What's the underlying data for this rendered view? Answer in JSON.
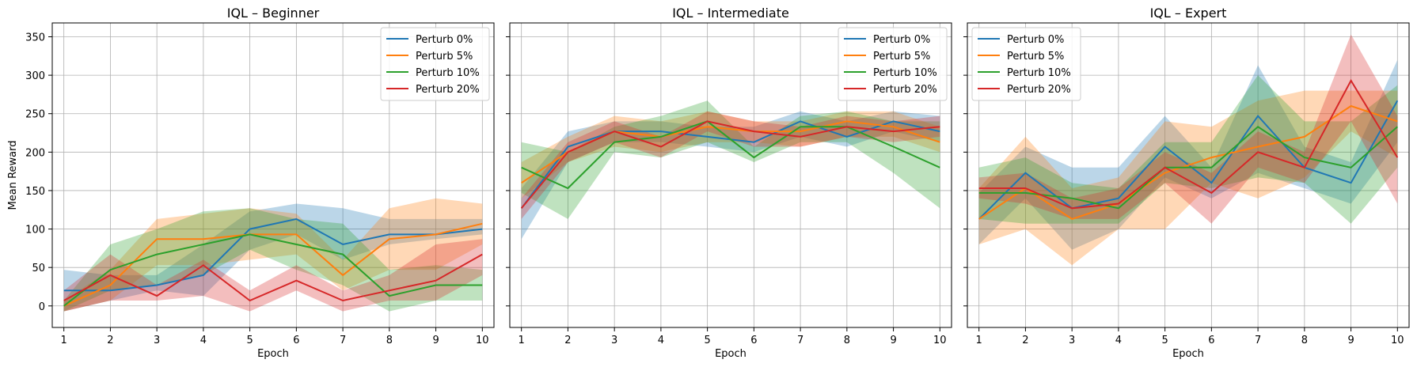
{
  "chart_data": [
    {
      "type": "line",
      "title": "IQL – Beginner",
      "xlabel": "Epoch",
      "ylabel": "Mean Reward",
      "x": [
        1,
        2,
        3,
        4,
        5,
        6,
        7,
        8,
        9,
        10
      ],
      "xlim": [
        0.75,
        10.25
      ],
      "ylim": [
        -28,
        368
      ],
      "yticks": [
        0,
        50,
        100,
        150,
        200,
        250,
        300,
        350
      ],
      "grid": true,
      "legend_position": "top-right",
      "series": [
        {
          "name": "Perturb 0%",
          "color": "#1f77b4",
          "values": [
            20,
            20,
            27,
            40,
            100,
            113,
            80,
            93,
            93,
            100
          ],
          "lower": [
            -7,
            7,
            20,
            13,
            73,
            93,
            60,
            80,
            87,
            93
          ],
          "upper": [
            47,
            40,
            40,
            80,
            123,
            133,
            127,
            113,
            113,
            113
          ]
        },
        {
          "name": "Perturb 5%",
          "color": "#ff7f0e",
          "values": [
            0,
            27,
            87,
            87,
            93,
            93,
            40,
            87,
            93,
            107
          ],
          "lower": [
            -7,
            7,
            53,
            53,
            60,
            67,
            20,
            47,
            47,
            80
          ],
          "upper": [
            7,
            47,
            113,
            120,
            127,
            120,
            60,
            127,
            140,
            133
          ]
        },
        {
          "name": "Perturb 10%",
          "color": "#2ca02c",
          "values": [
            0,
            47,
            67,
            80,
            93,
            80,
            67,
            13,
            27,
            27
          ],
          "lower": [
            -7,
            20,
            27,
            40,
            73,
            47,
            27,
            -7,
            7,
            7
          ],
          "upper": [
            7,
            80,
            100,
            123,
            127,
            113,
            107,
            47,
            53,
            47
          ]
        },
        {
          "name": "Perturb 20%",
          "color": "#d62728",
          "values": [
            7,
            40,
            13,
            53,
            7,
            33,
            7,
            20,
            33,
            67
          ],
          "lower": [
            -7,
            7,
            7,
            13,
            -7,
            20,
            -7,
            7,
            7,
            40
          ],
          "upper": [
            20,
            67,
            27,
            60,
            20,
            53,
            20,
            40,
            80,
            87
          ]
        }
      ]
    },
    {
      "type": "line",
      "title": "IQL – Intermediate",
      "xlabel": "Epoch",
      "ylabel": "",
      "x": [
        1,
        2,
        3,
        4,
        5,
        6,
        7,
        8,
        9,
        10
      ],
      "xlim": [
        0.75,
        10.25
      ],
      "ylim": [
        -28,
        368
      ],
      "yticks": [
        0,
        50,
        100,
        150,
        200,
        250,
        300,
        350
      ],
      "grid": true,
      "legend_position": "top-right",
      "series": [
        {
          "name": "Perturb 0%",
          "color": "#1f77b4",
          "values": [
            127,
            207,
            227,
            227,
            220,
            213,
            240,
            220,
            240,
            227
          ],
          "lower": [
            87,
            187,
            213,
            213,
            207,
            200,
            220,
            207,
            227,
            213
          ],
          "upper": [
            153,
            227,
            240,
            240,
            233,
            233,
            253,
            240,
            253,
            247
          ]
        },
        {
          "name": "Perturb 5%",
          "color": "#ff7f0e",
          "values": [
            160,
            200,
            227,
            220,
            233,
            227,
            227,
            240,
            233,
            213
          ],
          "lower": [
            140,
            187,
            207,
            200,
            213,
            213,
            207,
            220,
            220,
            200
          ],
          "upper": [
            187,
            220,
            247,
            240,
            253,
            240,
            240,
            253,
            253,
            233
          ]
        },
        {
          "name": "Perturb 10%",
          "color": "#2ca02c",
          "values": [
            180,
            153,
            213,
            220,
            240,
            193,
            233,
            233,
            207,
            180
          ],
          "lower": [
            147,
            113,
            200,
            193,
            213,
            187,
            213,
            213,
            173,
            127
          ],
          "upper": [
            213,
            200,
            233,
            247,
            267,
            207,
            247,
            253,
            240,
            240
          ]
        },
        {
          "name": "Perturb 20%",
          "color": "#d62728",
          "values": [
            127,
            200,
            227,
            207,
            240,
            227,
            220,
            233,
            227,
            233
          ],
          "lower": [
            113,
            187,
            213,
            193,
            227,
            207,
            207,
            220,
            213,
            220
          ],
          "upper": [
            140,
            213,
            240,
            220,
            253,
            240,
            233,
            247,
            240,
            247
          ]
        }
      ]
    },
    {
      "type": "line",
      "title": "IQL – Expert",
      "xlabel": "Epoch",
      "ylabel": "",
      "x": [
        1,
        2,
        3,
        4,
        5,
        6,
        7,
        8,
        9,
        10
      ],
      "xlim": [
        0.75,
        10.25
      ],
      "ylim": [
        -28,
        368
      ],
      "yticks": [
        0,
        50,
        100,
        150,
        200,
        250,
        300,
        350
      ],
      "grid": true,
      "legend_position": "top-left",
      "series": [
        {
          "name": "Perturb 0%",
          "color": "#1f77b4",
          "values": [
            113,
            173,
            127,
            140,
            207,
            160,
            247,
            180,
            160,
            267
          ],
          "lower": [
            80,
            140,
            73,
            100,
            167,
            140,
            173,
            153,
            133,
            213
          ],
          "upper": [
            147,
            207,
            180,
            180,
            247,
            180,
            313,
            207,
            187,
            320
          ]
        },
        {
          "name": "Perturb 5%",
          "color": "#ff7f0e",
          "values": [
            113,
            153,
            113,
            133,
            173,
            193,
            207,
            220,
            260,
            240
          ],
          "lower": [
            80,
            100,
            53,
            100,
            100,
            160,
            140,
            167,
            227,
            193
          ],
          "upper": [
            153,
            220,
            153,
            167,
            240,
            233,
            267,
            280,
            280,
            280
          ]
        },
        {
          "name": "Perturb 10%",
          "color": "#2ca02c",
          "values": [
            147,
            147,
            140,
            127,
            180,
            180,
            233,
            193,
            180,
            233
          ],
          "lower": [
            113,
            107,
            107,
            107,
            160,
            153,
            167,
            160,
            107,
            180
          ],
          "upper": [
            180,
            193,
            160,
            153,
            213,
            213,
            300,
            240,
            240,
            287
          ]
        },
        {
          "name": "Perturb 20%",
          "color": "#d62728",
          "values": [
            153,
            153,
            127,
            133,
            180,
            147,
            200,
            180,
            293,
            193
          ],
          "lower": [
            140,
            133,
            113,
            113,
            160,
            107,
            180,
            160,
            240,
            133
          ],
          "upper": [
            167,
            173,
            140,
            153,
            200,
            173,
            227,
            200,
            353,
            247
          ]
        }
      ]
    }
  ]
}
